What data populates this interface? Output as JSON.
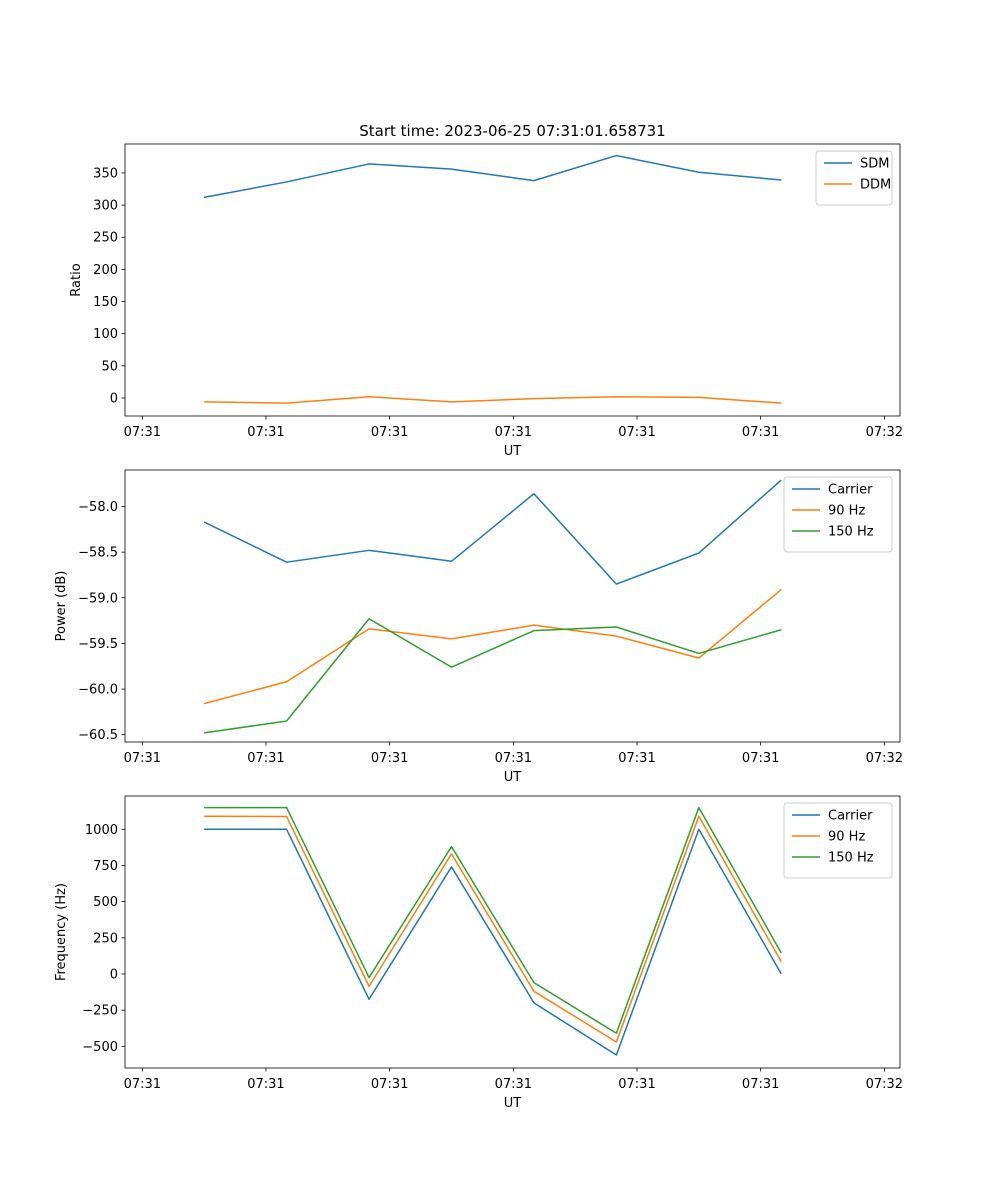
{
  "figure": {
    "title": "Start time: 2023-06-25 07:31:01.658731"
  },
  "chart_data": [
    {
      "type": "line",
      "xlabel": "UT",
      "ylabel": "Ratio",
      "x_tick_labels": [
        "07:31",
        "07:31",
        "07:31",
        "07:31",
        "07:31",
        "07:31",
        "07:32"
      ],
      "y_ticks": [
        0,
        50,
        100,
        150,
        200,
        250,
        300,
        350
      ],
      "y_tick_labels": [
        "0",
        "50",
        "100",
        "150",
        "200",
        "250",
        "300",
        "350"
      ],
      "ylim": [
        -28,
        395
      ],
      "legend": "top-right",
      "series": [
        {
          "name": "SDM",
          "color": "#1f77b4",
          "values": [
            312,
            336,
            364,
            356,
            338,
            377,
            351,
            339
          ]
        },
        {
          "name": "DDM",
          "color": "#ff7f0e",
          "values": [
            -6,
            -8,
            2,
            -6,
            -1,
            2,
            1,
            -8
          ]
        }
      ]
    },
    {
      "type": "line",
      "xlabel": "UT",
      "ylabel": "Power (dB)",
      "x_tick_labels": [
        "07:31",
        "07:31",
        "07:31",
        "07:31",
        "07:31",
        "07:31",
        "07:32"
      ],
      "y_ticks": [
        -60.5,
        -60.0,
        -59.5,
        -59.0,
        -58.5,
        -58.0
      ],
      "y_tick_labels": [
        "−60.5",
        "−60.0",
        "−59.5",
        "−59.0",
        "−58.5",
        "−58.0"
      ],
      "ylim": [
        -60.58,
        -57.6
      ],
      "legend": "top-right",
      "series": [
        {
          "name": "Carrier",
          "color": "#1f77b4",
          "values": [
            -58.17,
            -58.61,
            -58.48,
            -58.6,
            -57.86,
            -58.85,
            -58.51,
            -57.71
          ]
        },
        {
          "name": "90 Hz",
          "color": "#ff7f0e",
          "values": [
            -60.16,
            -59.92,
            -59.34,
            -59.45,
            -59.3,
            -59.42,
            -59.66,
            -58.91
          ]
        },
        {
          "name": "150 Hz",
          "color": "#2ca02c",
          "values": [
            -60.48,
            -60.35,
            -59.23,
            -59.76,
            -59.36,
            -59.32,
            -59.61,
            -59.35
          ]
        }
      ]
    },
    {
      "type": "line",
      "xlabel": "UT",
      "ylabel": "Frequency (Hz)",
      "x_tick_labels": [
        "07:31",
        "07:31",
        "07:31",
        "07:31",
        "07:31",
        "07:31",
        "07:32"
      ],
      "y_ticks": [
        -500,
        -250,
        0,
        250,
        500,
        750,
        1000
      ],
      "y_tick_labels": [
        "−500",
        "−250",
        "0",
        "250",
        "500",
        "750",
        "1000"
      ],
      "ylim": [
        -650,
        1230
      ],
      "legend": "top-right",
      "series": [
        {
          "name": "Carrier",
          "color": "#1f77b4",
          "values": [
            1000,
            1000,
            -175,
            740,
            -200,
            -560,
            1000,
            0
          ]
        },
        {
          "name": "90 Hz",
          "color": "#ff7f0e",
          "values": [
            1090,
            1088,
            -85,
            830,
            -120,
            -470,
            1090,
            85
          ]
        },
        {
          "name": "150 Hz",
          "color": "#2ca02c",
          "values": [
            1150,
            1150,
            -25,
            880,
            -60,
            -410,
            1150,
            145
          ]
        }
      ]
    }
  ]
}
